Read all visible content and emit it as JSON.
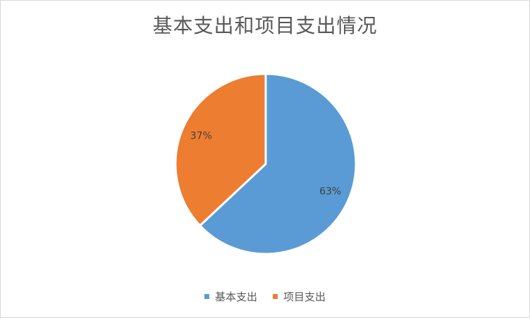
{
  "chart_data": {
    "type": "pie",
    "title": "基本支出和项目支出情况",
    "categories": [
      "基本支出",
      "项目支出"
    ],
    "values": [
      63,
      37
    ],
    "data_labels": [
      "63%",
      "37%"
    ],
    "colors": [
      "#5b9bd5",
      "#ed7d31"
    ],
    "legend_position": "bottom",
    "start_angle": "12 o'clock",
    "direction": "clockwise"
  }
}
